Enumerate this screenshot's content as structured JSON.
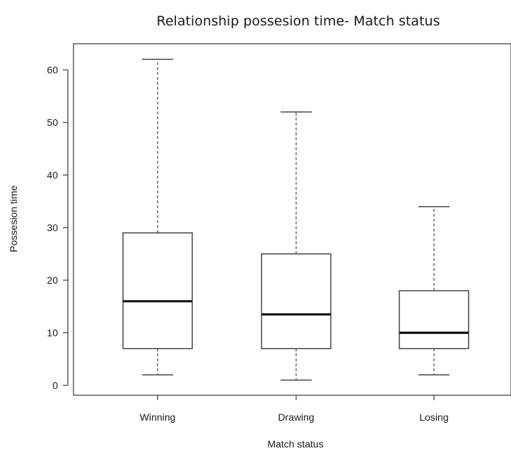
{
  "chart_data": {
    "type": "boxplot",
    "title": "Relationship possesion time- Match status",
    "xlabel": "Match status",
    "ylabel": "Possesion time",
    "ylim": [
      -2,
      65
    ],
    "yticks": [
      0,
      10,
      20,
      30,
      40,
      50,
      60
    ],
    "grid": false,
    "categories": [
      "Winning",
      "Drawing",
      "Losing"
    ],
    "series": [
      {
        "category": "Winning",
        "min": 2,
        "q1": 7,
        "median": 16,
        "q3": 29,
        "max": 62
      },
      {
        "category": "Drawing",
        "min": 1,
        "q1": 7,
        "median": 13.5,
        "q3": 25,
        "max": 52
      },
      {
        "category": "Losing",
        "min": 2,
        "q1": 7,
        "median": 10,
        "q3": 18,
        "max": 34
      }
    ]
  }
}
